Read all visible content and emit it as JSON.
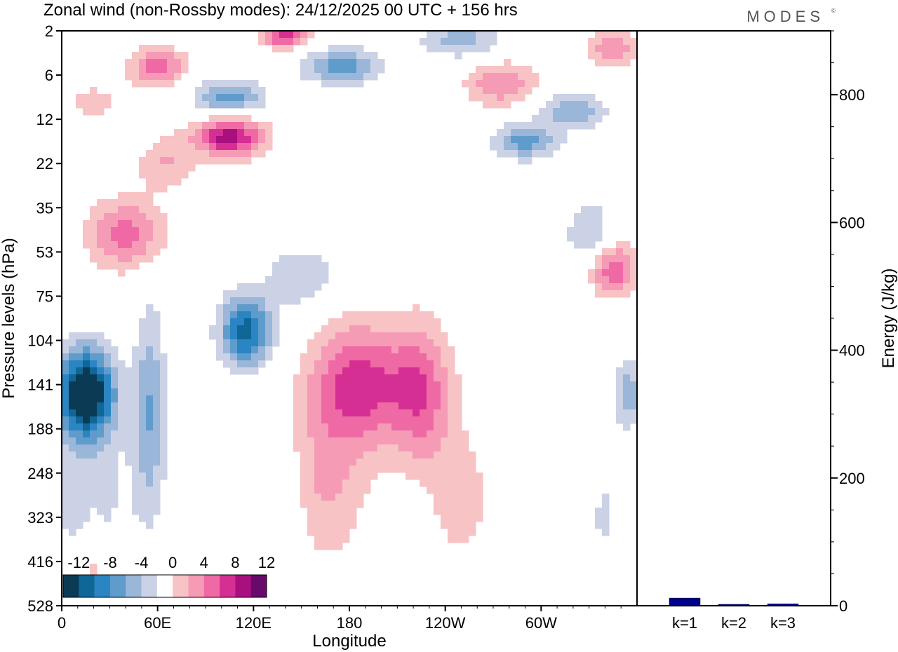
{
  "chart_data": [
    {
      "type": "heatmap",
      "title": "Zonal wind (non-Rossby modes):  24/12/2025  00 UTC  + 156 hrs",
      "brand": "MODES",
      "brand_mark": "©",
      "xlabel": "Longitude",
      "ylabel": "Pressure levels (hPa)",
      "x_ticks": [
        {
          "label": "0",
          "lon": 0
        },
        {
          "label": "60E",
          "lon": 60
        },
        {
          "label": "120E",
          "lon": 120
        },
        {
          "label": "180",
          "lon": 180
        },
        {
          "label": "120W",
          "lon": 240
        },
        {
          "label": "60W",
          "lon": 300
        }
      ],
      "xlim": [
        0,
        360
      ],
      "y_ticks": [
        2,
        6,
        12,
        22,
        35,
        53,
        75,
        104,
        141,
        188,
        248,
        323,
        416,
        528
      ],
      "colorbar": {
        "tick_labels": [
          "-12",
          "-8",
          "-4",
          "0",
          "4",
          "8",
          "12"
        ],
        "levels": [
          -14,
          -12,
          -10,
          -8,
          -6,
          -4,
          -2,
          2,
          4,
          6,
          8,
          10,
          12,
          14
        ],
        "colors": [
          "#0b3a55",
          "#0f6797",
          "#2a85c2",
          "#5f9ccc",
          "#9ab6d8",
          "#ccd2e6",
          "#ffffff",
          "#f8c3c5",
          "#f69bb6",
          "#ef6aa5",
          "#d62f94",
          "#a8107f",
          "#660a6b"
        ]
      },
      "features": [
        {
          "lon": 15,
          "level_index": 8.2,
          "value": -16,
          "lon_spread": 18,
          "level_spread": 1.0
        },
        {
          "lon": 55,
          "level_index": 8.6,
          "value": -6,
          "lon_spread": 10,
          "level_spread": 2.3
        },
        {
          "lon": 15,
          "level_index": 10.5,
          "value": -3,
          "lon_spread": 30,
          "level_spread": 1.5
        },
        {
          "lon": 115,
          "level_index": 6.8,
          "value": -11,
          "lon_spread": 16,
          "level_spread": 0.8
        },
        {
          "lon": 150,
          "level_index": 5.6,
          "value": -4,
          "lon_spread": 22,
          "level_spread": 0.7
        },
        {
          "lon": 185,
          "level_index": 8.0,
          "value": 9,
          "lon_spread": 30,
          "level_spread": 1.4
        },
        {
          "lon": 225,
          "level_index": 8.2,
          "value": 7,
          "lon_spread": 20,
          "level_spread": 1.6
        },
        {
          "lon": 165,
          "level_index": 10.3,
          "value": 4,
          "lon_spread": 26,
          "level_spread": 1.8
        },
        {
          "lon": 250,
          "level_index": 10.6,
          "value": 3,
          "lon_spread": 20,
          "level_spread": 1.6
        },
        {
          "lon": 40,
          "level_index": 4.6,
          "value": 7,
          "lon_spread": 24,
          "level_spread": 0.8
        },
        {
          "lon": 105,
          "level_index": 2.4,
          "value": 11,
          "lon_spread": 22,
          "level_spread": 0.45
        },
        {
          "lon": 65,
          "level_index": 3.0,
          "value": 4,
          "lon_spread": 18,
          "level_spread": 0.6
        },
        {
          "lon": 105,
          "level_index": 1.5,
          "value": -7,
          "lon_spread": 22,
          "level_spread": 0.4
        },
        {
          "lon": 175,
          "level_index": 0.8,
          "value": -7,
          "lon_spread": 25,
          "level_spread": 0.4
        },
        {
          "lon": 250,
          "level_index": 0.2,
          "value": -5,
          "lon_spread": 25,
          "level_spread": 0.4
        },
        {
          "lon": 60,
          "level_index": 0.8,
          "value": 7,
          "lon_spread": 18,
          "level_spread": 0.45
        },
        {
          "lon": 20,
          "level_index": 1.6,
          "value": 3,
          "lon_spread": 20,
          "level_spread": 0.4
        },
        {
          "lon": 140,
          "level_index": 0.1,
          "value": 9,
          "lon_spread": 15,
          "level_spread": 0.3
        },
        {
          "lon": 275,
          "level_index": 1.2,
          "value": 6,
          "lon_spread": 22,
          "level_spread": 0.5
        },
        {
          "lon": 345,
          "level_index": 0.4,
          "value": 6,
          "lon_spread": 15,
          "level_spread": 0.4
        },
        {
          "lon": 290,
          "level_index": 2.5,
          "value": -7,
          "lon_spread": 20,
          "level_spread": 0.4
        },
        {
          "lon": 320,
          "level_index": 1.8,
          "value": -6,
          "lon_spread": 20,
          "level_spread": 0.4
        },
        {
          "lon": 345,
          "level_index": 5.4,
          "value": 8,
          "lon_spread": 15,
          "level_spread": 0.6
        },
        {
          "lon": 330,
          "level_index": 4.6,
          "value": -4,
          "lon_spread": 15,
          "level_spread": 0.8
        },
        {
          "lon": 355,
          "level_index": 8.2,
          "value": -5,
          "lon_spread": 10,
          "level_spread": 0.8
        },
        {
          "lon": 140,
          "level_index": 11.0,
          "value": -2.2,
          "lon_spread": 12,
          "level_spread": 1.5
        },
        {
          "lon": 340,
          "level_index": 11.0,
          "value": -2.2,
          "lon_spread": 15,
          "level_spread": 1.5
        },
        {
          "lon": 20,
          "level_index": 12.0,
          "value": 3,
          "lon_spread": 6,
          "level_spread": 1.0
        }
      ]
    },
    {
      "type": "bar",
      "ylabel": "Energy (J/kg)",
      "categories": [
        "k=1",
        "k=2",
        "k=3"
      ],
      "values": [
        12,
        2,
        3
      ],
      "ylim": [
        0,
        900
      ],
      "y_ticks": [
        0,
        200,
        400,
        600,
        800
      ],
      "bar_color": "#00008b"
    }
  ]
}
